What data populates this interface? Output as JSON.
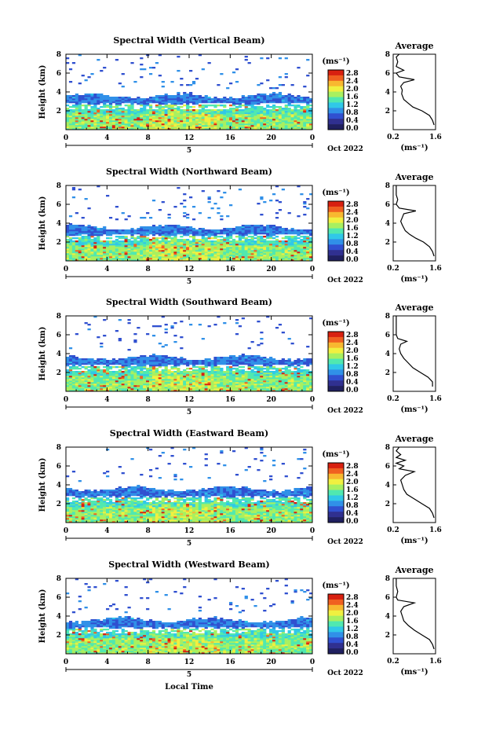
{
  "chart_data": [
    {
      "type": "heatmap",
      "title": "Spectral Width (Vertical Beam)",
      "ylabel": "Height (km)",
      "xlabel": "",
      "xlim": [
        0,
        24
      ],
      "ylim": [
        0,
        8
      ],
      "x_ticks": [
        "0",
        "4",
        "8",
        "12",
        "16",
        "20",
        "0"
      ],
      "y_ticks": [
        "2",
        "4",
        "6",
        "8"
      ],
      "date_day": "5",
      "date_label": "Oct 2022",
      "colorbar": {
        "unit": "(ms⁻¹)",
        "ticks": [
          "2.8",
          "2.4",
          "2.0",
          "1.6",
          "1.2",
          "0.8",
          "0.4",
          "0.0"
        ]
      },
      "profile": {
        "title": "Average",
        "xlabel": "(ms⁻¹)",
        "x_ticks": [
          "0.2",
          "1.6"
        ],
        "y_ticks": [
          "2",
          "4",
          "6",
          "8"
        ],
        "points": [
          [
            1.55,
            0.5
          ],
          [
            1.5,
            1.0
          ],
          [
            1.4,
            1.5
          ],
          [
            1.15,
            2.0
          ],
          [
            0.85,
            2.4
          ],
          [
            0.7,
            2.8
          ],
          [
            0.55,
            3.2
          ],
          [
            0.48,
            3.8
          ],
          [
            0.5,
            4.2
          ],
          [
            0.45,
            4.6
          ],
          [
            0.55,
            5.0
          ],
          [
            0.9,
            5.3
          ],
          [
            0.4,
            5.6
          ],
          [
            0.3,
            6.0
          ],
          [
            0.55,
            6.3
          ],
          [
            0.3,
            6.7
          ],
          [
            0.35,
            7.2
          ],
          [
            0.3,
            7.7
          ],
          [
            0.4,
            8.0
          ]
        ]
      }
    },
    {
      "type": "heatmap",
      "title": "Spectral Width (Northward Beam)",
      "ylabel": "Height (km)",
      "xlabel": "",
      "xlim": [
        0,
        24
      ],
      "ylim": [
        0,
        8
      ],
      "x_ticks": [
        "0",
        "4",
        "8",
        "12",
        "16",
        "20",
        "0"
      ],
      "y_ticks": [
        "2",
        "4",
        "6",
        "8"
      ],
      "date_day": "5",
      "date_label": "Oct 2022",
      "colorbar": {
        "unit": "(ms⁻¹)",
        "ticks": [
          "2.8",
          "2.4",
          "2.0",
          "1.6",
          "1.2",
          "0.8",
          "0.4",
          "0.0"
        ]
      },
      "profile": {
        "title": "Average",
        "xlabel": "(ms⁻¹)",
        "x_ticks": [
          "0.2",
          "1.6"
        ],
        "y_ticks": [
          "2",
          "4",
          "6",
          "8"
        ],
        "points": [
          [
            1.55,
            0.5
          ],
          [
            1.5,
            1.0
          ],
          [
            1.4,
            1.5
          ],
          [
            1.2,
            2.0
          ],
          [
            0.95,
            2.4
          ],
          [
            0.75,
            2.8
          ],
          [
            0.6,
            3.2
          ],
          [
            0.5,
            3.8
          ],
          [
            0.45,
            4.2
          ],
          [
            0.5,
            4.6
          ],
          [
            0.55,
            5.0
          ],
          [
            0.95,
            5.3
          ],
          [
            0.4,
            5.6
          ],
          [
            0.3,
            6.0
          ],
          [
            0.35,
            6.5
          ],
          [
            0.3,
            7.0
          ],
          [
            0.3,
            8.0
          ]
        ]
      }
    },
    {
      "type": "heatmap",
      "title": "Spectral Width (Southward Beam)",
      "ylabel": "Height (km)",
      "xlabel": "",
      "xlim": [
        0,
        24
      ],
      "ylim": [
        0,
        8
      ],
      "x_ticks": [
        "0",
        "4",
        "8",
        "12",
        "16",
        "20",
        "0"
      ],
      "y_ticks": [
        "2",
        "4",
        "6",
        "8"
      ],
      "date_day": "5",
      "date_label": "Oct 2022",
      "colorbar": {
        "unit": "(ms⁻¹)",
        "ticks": [
          "2.8",
          "2.4",
          "2.0",
          "1.6",
          "1.2",
          "0.8",
          "0.4",
          "0.0"
        ]
      },
      "profile": {
        "title": "Average",
        "xlabel": "(ms⁻¹)",
        "x_ticks": [
          "0.2",
          "1.6"
        ],
        "y_ticks": [
          "2",
          "4",
          "6",
          "8"
        ],
        "points": [
          [
            1.5,
            0.5
          ],
          [
            1.5,
            1.0
          ],
          [
            1.35,
            1.5
          ],
          [
            1.1,
            2.0
          ],
          [
            0.85,
            2.5
          ],
          [
            0.7,
            3.0
          ],
          [
            0.55,
            3.5
          ],
          [
            0.45,
            4.0
          ],
          [
            0.4,
            4.5
          ],
          [
            0.45,
            5.0
          ],
          [
            0.65,
            5.3
          ],
          [
            0.35,
            5.6
          ],
          [
            0.3,
            6.0
          ],
          [
            0.3,
            7.0
          ],
          [
            0.3,
            8.0
          ]
        ]
      }
    },
    {
      "type": "heatmap",
      "title": "Spectral Width (Eastward Beam)",
      "ylabel": "Height (km)",
      "xlabel": "",
      "xlim": [
        0,
        24
      ],
      "ylim": [
        0,
        8
      ],
      "x_ticks": [
        "0",
        "4",
        "8",
        "12",
        "16",
        "20",
        "0"
      ],
      "y_ticks": [
        "2",
        "4",
        "6",
        "8"
      ],
      "date_day": "5",
      "date_label": "Oct 2022",
      "colorbar": {
        "unit": "(ms⁻¹)",
        "ticks": [
          "2.8",
          "2.4",
          "2.0",
          "1.6",
          "1.2",
          "0.8",
          "0.4",
          "0.0"
        ]
      },
      "profile": {
        "title": "Average",
        "xlabel": "(ms⁻¹)",
        "x_ticks": [
          "0.2",
          "1.6"
        ],
        "y_ticks": [
          "2",
          "4",
          "6",
          "8"
        ],
        "points": [
          [
            1.55,
            0.5
          ],
          [
            1.5,
            1.0
          ],
          [
            1.4,
            1.5
          ],
          [
            1.15,
            2.0
          ],
          [
            0.9,
            2.5
          ],
          [
            0.65,
            3.0
          ],
          [
            0.55,
            3.5
          ],
          [
            0.5,
            4.0
          ],
          [
            0.45,
            4.5
          ],
          [
            0.6,
            5.0
          ],
          [
            0.9,
            5.4
          ],
          [
            0.4,
            5.7
          ],
          [
            0.55,
            6.0
          ],
          [
            0.3,
            6.3
          ],
          [
            0.6,
            6.6
          ],
          [
            0.3,
            6.9
          ],
          [
            0.45,
            7.2
          ],
          [
            0.3,
            7.6
          ],
          [
            0.4,
            8.0
          ]
        ]
      }
    },
    {
      "type": "heatmap",
      "title": "Spectral Width (Westward Beam)",
      "ylabel": "Height (km)",
      "xlabel": "Local Time",
      "xlim": [
        0,
        24
      ],
      "ylim": [
        0,
        8
      ],
      "x_ticks": [
        "0",
        "4",
        "8",
        "12",
        "16",
        "20",
        "0"
      ],
      "y_ticks": [
        "2",
        "4",
        "6",
        "8"
      ],
      "date_day": "5",
      "date_label": "Oct 2022",
      "colorbar": {
        "unit": "(ms⁻¹)",
        "ticks": [
          "2.8",
          "2.4",
          "2.0",
          "1.6",
          "1.2",
          "0.8",
          "0.4",
          "0.0"
        ]
      },
      "profile": {
        "title": "Average",
        "xlabel": "(ms⁻¹)",
        "x_ticks": [
          "0.2",
          "1.6"
        ],
        "y_ticks": [
          "2",
          "4",
          "6",
          "8"
        ],
        "points": [
          [
            1.55,
            0.5
          ],
          [
            1.5,
            1.0
          ],
          [
            1.4,
            1.5
          ],
          [
            1.15,
            2.0
          ],
          [
            0.9,
            2.5
          ],
          [
            0.7,
            3.0
          ],
          [
            0.55,
            3.5
          ],
          [
            0.5,
            4.0
          ],
          [
            0.45,
            4.5
          ],
          [
            0.55,
            5.0
          ],
          [
            0.9,
            5.4
          ],
          [
            0.35,
            5.7
          ],
          [
            0.3,
            6.0
          ],
          [
            0.35,
            6.6
          ],
          [
            0.3,
            7.2
          ],
          [
            0.3,
            8.0
          ]
        ]
      }
    }
  ],
  "colors": {
    "scale": [
      "#303090",
      "#3050d0",
      "#3090e8",
      "#30c8e8",
      "#50e8b0",
      "#a8f060",
      "#f0f040",
      "#f8b830",
      "#f06020",
      "#d82010"
    ],
    "floor": "#202060"
  }
}
